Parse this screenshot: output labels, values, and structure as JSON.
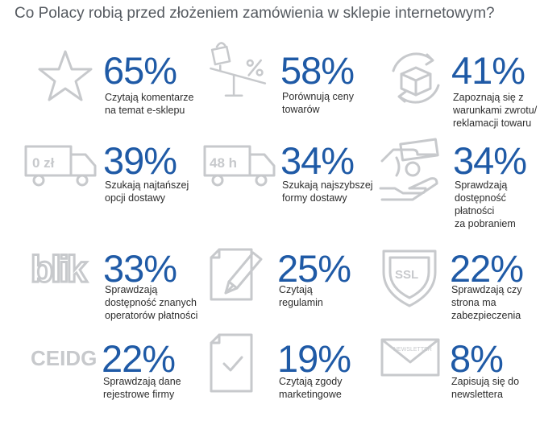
{
  "title": "Co Polacy robią przed złożeniem zamówienia w sklepie internetowym?",
  "colors": {
    "accent": "#1f5aa6",
    "icon": "#c7c9cc",
    "text": "#2d2d2d",
    "title": "#555a60"
  },
  "chart_data": {
    "type": "table",
    "title": "Co Polacy robią przed złożeniem zamówienia w sklepie internetowym?",
    "unit": "%",
    "items": [
      {
        "value": 65,
        "label": "65%",
        "lines": [
          "Czytają komentarze",
          "na temat e-sklepu"
        ],
        "icon": "star-icon"
      },
      {
        "value": 58,
        "label": "58%",
        "lines": [
          "Porównują ceny",
          "towarów"
        ],
        "icon": "price-scale-icon"
      },
      {
        "value": 41,
        "label": "41%",
        "lines": [
          "Zapoznają się z",
          "warunkami zwrotu/",
          "reklamacji towaru"
        ],
        "icon": "return-box-icon"
      },
      {
        "value": 39,
        "label": "39%",
        "lines": [
          "Szukają najtańszej",
          "opcji dostawy"
        ],
        "icon": "truck-cheap-icon",
        "icon_text": "0 zł"
      },
      {
        "value": 34,
        "label": "34%",
        "lines": [
          "Szukają najszybszej",
          "formy dostawy"
        ],
        "icon": "truck-fast-icon",
        "icon_text": "48 h"
      },
      {
        "value": 34,
        "label": "34%",
        "lines": [
          "Sprawdzają",
          "dostępność",
          "płatności",
          "za pobraniem"
        ],
        "icon": "hands-payment-icon"
      },
      {
        "value": 33,
        "label": "33%",
        "lines": [
          "Sprawdzają",
          "dostępność znanych",
          "operatorów płatności"
        ],
        "icon": "blik-logo-icon",
        "icon_text": "blik"
      },
      {
        "value": 25,
        "label": "25%",
        "lines": [
          "Czytają",
          "regulamin"
        ],
        "icon": "document-pen-icon"
      },
      {
        "value": 22,
        "label": "22%",
        "lines": [
          "Sprawdzają czy",
          "strona ma",
          "zabezpieczenia"
        ],
        "icon": "ssl-shield-icon",
        "icon_text": "SSL"
      },
      {
        "value": 22,
        "label": "22%",
        "lines": [
          "Sprawdzają dane",
          "rejestrowe firmy"
        ],
        "icon": "ceidg-logo-icon",
        "icon_text": "CEIDG"
      },
      {
        "value": 19,
        "label": "19%",
        "lines": [
          "Czytają zgody",
          "marketingowe"
        ],
        "icon": "document-check-icon"
      },
      {
        "value": 8,
        "label": "8%",
        "lines": [
          "Zapisują się do",
          "newslettera"
        ],
        "icon": "newsletter-envelope-icon",
        "icon_text": "NEWSLETTER"
      }
    ]
  }
}
